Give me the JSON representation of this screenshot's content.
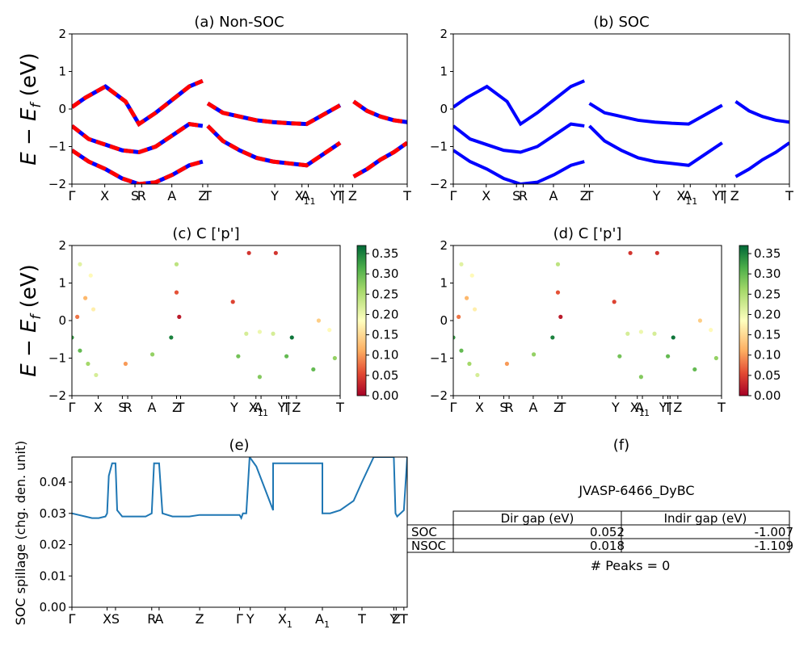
{
  "panels": {
    "a": {
      "title": "(a) Non-SOC",
      "ylabel": "E − E",
      "ylabel_sub": "f",
      "ylabel_unit": " (eV)",
      "yticks": [
        "2",
        "1",
        "0",
        "−1",
        "−2"
      ],
      "xticks": [
        {
          "label": "Γ",
          "x": 0
        },
        {
          "label": "X",
          "x": 0.098
        },
        {
          "label": "S",
          "x": 0.188
        },
        {
          "label": "R",
          "x": 0.208
        },
        {
          "label": "A",
          "x": 0.298
        },
        {
          "label": "Z",
          "x": 0.39
        },
        {
          "label": "T",
          "x": 0.405
        },
        {
          "label": "Y",
          "x": 0.605
        },
        {
          "label": "X",
          "x": 0.686,
          "sub": "1"
        },
        {
          "label": "A",
          "x": 0.705,
          "sub": "1"
        },
        {
          "label": "Y",
          "x": 0.782
        },
        {
          "label": "T",
          "x": 0.8
        },
        {
          "label": "|",
          "x": 0.808
        },
        {
          "label": "Z",
          "x": 0.837
        },
        {
          "label": "T",
          "x": 1.0
        }
      ],
      "line_colors": {
        "primary": "#ff0000",
        "secondary": "#0000ff"
      }
    },
    "b": {
      "title": "(b) SOC",
      "yticks": [
        "2",
        "1",
        "0",
        "−1",
        "−2"
      ],
      "xticks": [
        {
          "label": "Γ",
          "x": 0
        },
        {
          "label": "X",
          "x": 0.098
        },
        {
          "label": "S",
          "x": 0.188
        },
        {
          "label": "R",
          "x": 0.208
        },
        {
          "label": "A",
          "x": 0.298
        },
        {
          "label": "Z",
          "x": 0.39
        },
        {
          "label": "T",
          "x": 0.405
        },
        {
          "label": "Y",
          "x": 0.605
        },
        {
          "label": "X",
          "x": 0.686,
          "sub": "1"
        },
        {
          "label": "A",
          "x": 0.705,
          "sub": "1"
        },
        {
          "label": "Y",
          "x": 0.782
        },
        {
          "label": "T",
          "x": 0.8
        },
        {
          "label": "|",
          "x": 0.808
        },
        {
          "label": "Z",
          "x": 0.837
        },
        {
          "label": "T",
          "x": 1.0
        }
      ],
      "line_color": "#0000ff"
    },
    "c": {
      "title": "(c)  C ['p']",
      "ylabel": "E − E",
      "ylabel_sub": "f",
      "ylabel_unit": " (eV)",
      "yticks": [
        "2",
        "1",
        "0",
        "−1",
        "−2"
      ],
      "cbar_ticks": [
        "0.35",
        "0.30",
        "0.25",
        "0.20",
        "0.15",
        "0.10",
        "0.05",
        "0.00"
      ],
      "xticks": [
        {
          "label": "Γ",
          "x": 0
        },
        {
          "label": "X",
          "x": 0.098
        },
        {
          "label": "S",
          "x": 0.188
        },
        {
          "label": "R",
          "x": 0.208
        },
        {
          "label": "A",
          "x": 0.298
        },
        {
          "label": "Z",
          "x": 0.39
        },
        {
          "label": "T",
          "x": 0.405
        },
        {
          "label": "Y",
          "x": 0.605
        },
        {
          "label": "X",
          "x": 0.686,
          "sub": "1"
        },
        {
          "label": "A",
          "x": 0.705,
          "sub": "1"
        },
        {
          "label": "Y",
          "x": 0.782
        },
        {
          "label": "T",
          "x": 0.8
        },
        {
          "label": "|",
          "x": 0.808
        },
        {
          "label": "Z",
          "x": 0.837
        },
        {
          "label": "T",
          "x": 1.0
        }
      ]
    },
    "d": {
      "title": "(d) C ['p']",
      "yticks": [
        "2",
        "1",
        "0",
        "−1",
        "−2"
      ],
      "cbar_ticks": [
        "0.35",
        "0.30",
        "0.25",
        "0.20",
        "0.15",
        "0.10",
        "0.05",
        "0.00"
      ],
      "xticks": [
        {
          "label": "Γ",
          "x": 0
        },
        {
          "label": "X",
          "x": 0.098
        },
        {
          "label": "S",
          "x": 0.188
        },
        {
          "label": "R",
          "x": 0.208
        },
        {
          "label": "A",
          "x": 0.298
        },
        {
          "label": "Z",
          "x": 0.39
        },
        {
          "label": "T",
          "x": 0.405
        },
        {
          "label": "Y",
          "x": 0.605
        },
        {
          "label": "X",
          "x": 0.686,
          "sub": "1"
        },
        {
          "label": "A",
          "x": 0.705,
          "sub": "1"
        },
        {
          "label": "Y",
          "x": 0.782
        },
        {
          "label": "T",
          "x": 0.8
        },
        {
          "label": "|",
          "x": 0.808
        },
        {
          "label": "Z",
          "x": 0.837
        },
        {
          "label": "T",
          "x": 1.0
        }
      ]
    },
    "e": {
      "title": "(e)",
      "ylabel": "SOC spillage (chg. den. unit)",
      "yticks": [
        "0.00",
        "0.01",
        "0.02",
        "0.03",
        "0.04"
      ],
      "xticks": [
        {
          "label": "Γ",
          "x": 0
        },
        {
          "label": "X",
          "x": 0.105
        },
        {
          "label": "S",
          "x": 0.13
        },
        {
          "label": "R",
          "x": 0.238
        },
        {
          "label": "A",
          "x": 0.26
        },
        {
          "label": "Z",
          "x": 0.381
        },
        {
          "label": "Γ",
          "x": 0.5
        },
        {
          "label": "Y",
          "x": 0.532
        },
        {
          "label": "X",
          "x": 0.636,
          "sub": "1"
        },
        {
          "label": "A",
          "x": 0.747,
          "sub": "1"
        },
        {
          "label": "T",
          "x": 0.865
        },
        {
          "label": "Y",
          "x": 0.96
        },
        {
          "label": "Z",
          "x": 0.967
        },
        {
          "label": "T",
          "x": 0.99
        }
      ]
    },
    "f": {
      "title": "(f)",
      "subtitle": "JVASP-6466_DyBC",
      "table": {
        "headers": [
          "",
          "Dir gap (eV)",
          "Indir gap (eV)"
        ],
        "rows": [
          [
            "SOC",
            "0.052",
            "-1.007"
          ],
          [
            "NSOC",
            "0.018",
            "-1.109"
          ]
        ]
      },
      "footer": "# Peaks = 0"
    }
  },
  "chart_data": [
    {
      "type": "line",
      "panel": "a",
      "ylim": [
        -2,
        2
      ],
      "xlim": [
        0,
        1
      ],
      "series": [
        {
          "values_x": [
            0,
            0.04,
            0.1,
            0.16,
            0.2,
            0.25,
            0.3,
            0.35,
            0.39
          ],
          "values_y": [
            0.05,
            0.3,
            0.6,
            0.2,
            -0.4,
            -0.1,
            0.25,
            0.6,
            0.75
          ]
        },
        {
          "values_x": [
            0,
            0.05,
            0.1,
            0.15,
            0.2,
            0.25,
            0.3,
            0.35,
            0.39
          ],
          "values_y": [
            -0.45,
            -0.8,
            -0.95,
            -1.1,
            -1.15,
            -1.0,
            -0.7,
            -0.4,
            -0.45
          ]
        },
        {
          "values_x": [
            0,
            0.05,
            0.1,
            0.15,
            0.2,
            0.25,
            0.3,
            0.35,
            0.39
          ],
          "values_y": [
            -1.1,
            -1.4,
            -1.6,
            -1.85,
            -2.0,
            -1.95,
            -1.75,
            -1.5,
            -1.4
          ]
        },
        {
          "values_x": [
            0.405,
            0.45,
            0.5,
            0.55,
            0.6,
            0.65,
            0.7,
            0.75,
            0.8
          ],
          "values_y": [
            -0.45,
            -0.85,
            -1.1,
            -1.3,
            -1.4,
            -1.45,
            -1.5,
            -1.2,
            -0.9
          ]
        },
        {
          "values_x": [
            0.405,
            0.45,
            0.5,
            0.55,
            0.6,
            0.65,
            0.7,
            0.75,
            0.8
          ],
          "values_y": [
            0.15,
            -0.1,
            -0.2,
            -0.3,
            -0.35,
            -0.38,
            -0.4,
            -0.15,
            0.1
          ]
        },
        {
          "values_x": [
            0.84,
            0.88,
            0.92,
            0.96,
            1.0
          ],
          "values_y": [
            -1.8,
            -1.6,
            -1.35,
            -1.15,
            -0.9
          ]
        },
        {
          "values_x": [
            0.84,
            0.88,
            0.92,
            0.96,
            1.0
          ],
          "values_y": [
            0.2,
            -0.05,
            -0.2,
            -0.3,
            -0.35
          ]
        }
      ]
    },
    {
      "type": "line",
      "panel": "b",
      "ylim": [
        -2,
        2
      ],
      "xlim": [
        0,
        1
      ],
      "series": [
        {
          "values_x": [
            0,
            0.04,
            0.1,
            0.16,
            0.2,
            0.25,
            0.3,
            0.35,
            0.39
          ],
          "values_y": [
            0.05,
            0.3,
            0.6,
            0.2,
            -0.4,
            -0.1,
            0.25,
            0.6,
            0.75
          ]
        },
        {
          "values_x": [
            0,
            0.05,
            0.1,
            0.15,
            0.2,
            0.25,
            0.3,
            0.35,
            0.39
          ],
          "values_y": [
            -0.45,
            -0.8,
            -0.95,
            -1.1,
            -1.15,
            -1.0,
            -0.7,
            -0.4,
            -0.45
          ]
        },
        {
          "values_x": [
            0,
            0.05,
            0.1,
            0.15,
            0.2,
            0.25,
            0.3,
            0.35,
            0.39
          ],
          "values_y": [
            -1.1,
            -1.4,
            -1.6,
            -1.85,
            -2.0,
            -1.95,
            -1.75,
            -1.5,
            -1.4
          ]
        },
        {
          "values_x": [
            0.405,
            0.45,
            0.5,
            0.55,
            0.6,
            0.65,
            0.7,
            0.75,
            0.8
          ],
          "values_y": [
            -0.45,
            -0.85,
            -1.1,
            -1.3,
            -1.4,
            -1.45,
            -1.5,
            -1.2,
            -0.9
          ]
        },
        {
          "values_x": [
            0.405,
            0.45,
            0.5,
            0.55,
            0.6,
            0.65,
            0.7,
            0.75,
            0.8
          ],
          "values_y": [
            0.15,
            -0.1,
            -0.2,
            -0.3,
            -0.35,
            -0.38,
            -0.4,
            -0.15,
            0.1
          ]
        },
        {
          "values_x": [
            0.84,
            0.88,
            0.92,
            0.96,
            1.0
          ],
          "values_y": [
            -1.8,
            -1.6,
            -1.35,
            -1.15,
            -0.9
          ]
        },
        {
          "values_x": [
            0.84,
            0.88,
            0.92,
            0.96,
            1.0
          ],
          "values_y": [
            0.2,
            -0.05,
            -0.2,
            -0.3,
            -0.35
          ]
        }
      ]
    },
    {
      "type": "scatter",
      "panel": "c",
      "ylim": [
        -2,
        2
      ],
      "xlim": [
        0,
        1
      ],
      "clim": [
        0,
        0.37
      ],
      "points": [
        {
          "x": 0.0,
          "y": -0.45,
          "c": 0.33
        },
        {
          "x": 0.03,
          "y": -0.8,
          "c": 0.3
        },
        {
          "x": 0.06,
          "y": -1.15,
          "c": 0.26
        },
        {
          "x": 0.09,
          "y": -1.45,
          "c": 0.22
        },
        {
          "x": 0.02,
          "y": 0.1,
          "c": 0.08
        },
        {
          "x": 0.05,
          "y": 0.6,
          "c": 0.12
        },
        {
          "x": 0.08,
          "y": 0.3,
          "c": 0.17
        },
        {
          "x": 0.03,
          "y": 1.5,
          "c": 0.21
        },
        {
          "x": 0.07,
          "y": 1.2,
          "c": 0.18
        },
        {
          "x": 0.2,
          "y": -1.15,
          "c": 0.1
        },
        {
          "x": 0.3,
          "y": -0.9,
          "c": 0.27
        },
        {
          "x": 0.37,
          "y": -0.45,
          "c": 0.35
        },
        {
          "x": 0.39,
          "y": 0.75,
          "c": 0.06
        },
        {
          "x": 0.4,
          "y": 0.1,
          "c": 0.02
        },
        {
          "x": 0.39,
          "y": 1.5,
          "c": 0.24
        },
        {
          "x": 0.6,
          "y": 0.5,
          "c": 0.05
        },
        {
          "x": 0.65,
          "y": -0.35,
          "c": 0.22
        },
        {
          "x": 0.7,
          "y": -0.3,
          "c": 0.2
        },
        {
          "x": 0.75,
          "y": -0.35,
          "c": 0.22
        },
        {
          "x": 0.62,
          "y": -0.95,
          "c": 0.29
        },
        {
          "x": 0.7,
          "y": -1.5,
          "c": 0.28
        },
        {
          "x": 0.8,
          "y": -0.95,
          "c": 0.3
        },
        {
          "x": 0.66,
          "y": 1.8,
          "c": 0.04
        },
        {
          "x": 0.76,
          "y": 1.8,
          "c": 0.04
        },
        {
          "x": 0.82,
          "y": -0.45,
          "c": 0.36
        },
        {
          "x": 0.9,
          "y": -1.3,
          "c": 0.3
        },
        {
          "x": 0.98,
          "y": -1.0,
          "c": 0.27
        },
        {
          "x": 0.92,
          "y": 0.0,
          "c": 0.14
        },
        {
          "x": 0.96,
          "y": -0.25,
          "c": 0.18
        }
      ]
    },
    {
      "type": "scatter",
      "panel": "d",
      "ylim": [
        -2,
        2
      ],
      "xlim": [
        0,
        1
      ],
      "clim": [
        0,
        0.37
      ],
      "points": [
        {
          "x": 0.0,
          "y": -0.45,
          "c": 0.33
        },
        {
          "x": 0.03,
          "y": -0.8,
          "c": 0.3
        },
        {
          "x": 0.06,
          "y": -1.15,
          "c": 0.26
        },
        {
          "x": 0.09,
          "y": -1.45,
          "c": 0.22
        },
        {
          "x": 0.02,
          "y": 0.1,
          "c": 0.08
        },
        {
          "x": 0.05,
          "y": 0.6,
          "c": 0.12
        },
        {
          "x": 0.08,
          "y": 0.3,
          "c": 0.17
        },
        {
          "x": 0.03,
          "y": 1.5,
          "c": 0.21
        },
        {
          "x": 0.07,
          "y": 1.2,
          "c": 0.18
        },
        {
          "x": 0.2,
          "y": -1.15,
          "c": 0.1
        },
        {
          "x": 0.3,
          "y": -0.9,
          "c": 0.27
        },
        {
          "x": 0.37,
          "y": -0.45,
          "c": 0.35
        },
        {
          "x": 0.39,
          "y": 0.75,
          "c": 0.06
        },
        {
          "x": 0.4,
          "y": 0.1,
          "c": 0.02
        },
        {
          "x": 0.39,
          "y": 1.5,
          "c": 0.24
        },
        {
          "x": 0.6,
          "y": 0.5,
          "c": 0.05
        },
        {
          "x": 0.65,
          "y": -0.35,
          "c": 0.22
        },
        {
          "x": 0.7,
          "y": -0.3,
          "c": 0.2
        },
        {
          "x": 0.75,
          "y": -0.35,
          "c": 0.22
        },
        {
          "x": 0.62,
          "y": -0.95,
          "c": 0.29
        },
        {
          "x": 0.7,
          "y": -1.5,
          "c": 0.28
        },
        {
          "x": 0.8,
          "y": -0.95,
          "c": 0.3
        },
        {
          "x": 0.66,
          "y": 1.8,
          "c": 0.04
        },
        {
          "x": 0.76,
          "y": 1.8,
          "c": 0.04
        },
        {
          "x": 0.82,
          "y": -0.45,
          "c": 0.36
        },
        {
          "x": 0.9,
          "y": -1.3,
          "c": 0.3
        },
        {
          "x": 0.98,
          "y": -1.0,
          "c": 0.27
        },
        {
          "x": 0.92,
          "y": 0.0,
          "c": 0.14
        },
        {
          "x": 0.96,
          "y": -0.25,
          "c": 0.18
        }
      ]
    },
    {
      "type": "line",
      "panel": "e",
      "ylim": [
        0,
        0.048
      ],
      "xlim": [
        0,
        1
      ],
      "color": "#1f77b4",
      "series": [
        {
          "values_x": [
            0,
            0.02,
            0.04,
            0.06,
            0.08,
            0.1,
            0.105,
            0.11,
            0.12,
            0.13,
            0.135,
            0.15,
            0.2,
            0.22,
            0.238,
            0.245,
            0.26,
            0.27,
            0.3,
            0.35,
            0.381,
            0.42,
            0.45,
            0.5,
            0.505,
            0.51,
            0.52,
            0.53,
            0.55,
            0.6,
            0.6,
            0.636,
            0.65,
            0.65,
            0.747,
            0.747,
            0.77,
            0.8,
            0.84,
            0.865,
            0.9,
            0.94,
            0.96,
            0.965,
            0.97,
            0.98,
            0.99,
            1.0
          ],
          "values_y": [
            0.03,
            0.0295,
            0.029,
            0.0285,
            0.0285,
            0.029,
            0.03,
            0.042,
            0.046,
            0.046,
            0.031,
            0.029,
            0.029,
            0.029,
            0.03,
            0.046,
            0.046,
            0.03,
            0.029,
            0.029,
            0.0295,
            0.0295,
            0.0295,
            0.0295,
            0.0285,
            0.03,
            0.03,
            0.048,
            0.045,
            0.031,
            0.046,
            0.046,
            0.046,
            0.046,
            0.046,
            0.03,
            0.03,
            0.031,
            0.034,
            0.04,
            0.048,
            0.048,
            0.048,
            0.03,
            0.029,
            0.03,
            0.031,
            0.048
          ]
        }
      ]
    }
  ]
}
